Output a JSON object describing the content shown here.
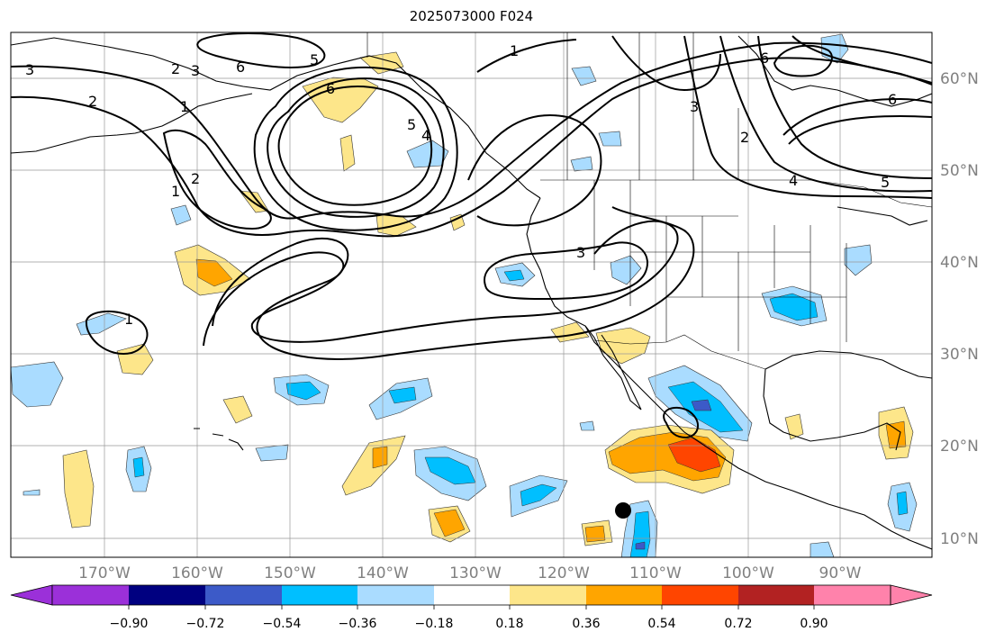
{
  "title": "2025073000 F024",
  "lon_labels": [
    "170°W",
    "160°W",
    "150°W",
    "140°W",
    "130°W",
    "120°W",
    "110°W",
    "100°W",
    "90°W"
  ],
  "lat_labels": [
    "60°N",
    "50°N",
    "40°N",
    "30°N",
    "20°N",
    "10°N"
  ],
  "colorbar": {
    "ticks": [
      "−0.90",
      "−0.72",
      "−0.54",
      "−0.36",
      "−0.18",
      "0.18",
      "0.36",
      "0.54",
      "0.72",
      "0.90"
    ],
    "colors": [
      "#9b30d9",
      "#000080",
      "#3c5ac8",
      "#00bfff",
      "#aadcff",
      "#ffffff",
      "#fde68a",
      "#ffa500",
      "#ff4500",
      "#b22222",
      "#ff82ab"
    ]
  },
  "contour_labels": [
    "3",
    "2",
    "1",
    "2",
    "3",
    "6",
    "6",
    "5",
    "4",
    "2",
    "5",
    "1",
    "3",
    "6",
    "6",
    "2",
    "4",
    "5",
    "1",
    "3",
    "1"
  ],
  "colors": {
    "coast": "#000000",
    "grid": "#999999",
    "contour": "#000000",
    "axis_label": "#808080"
  }
}
